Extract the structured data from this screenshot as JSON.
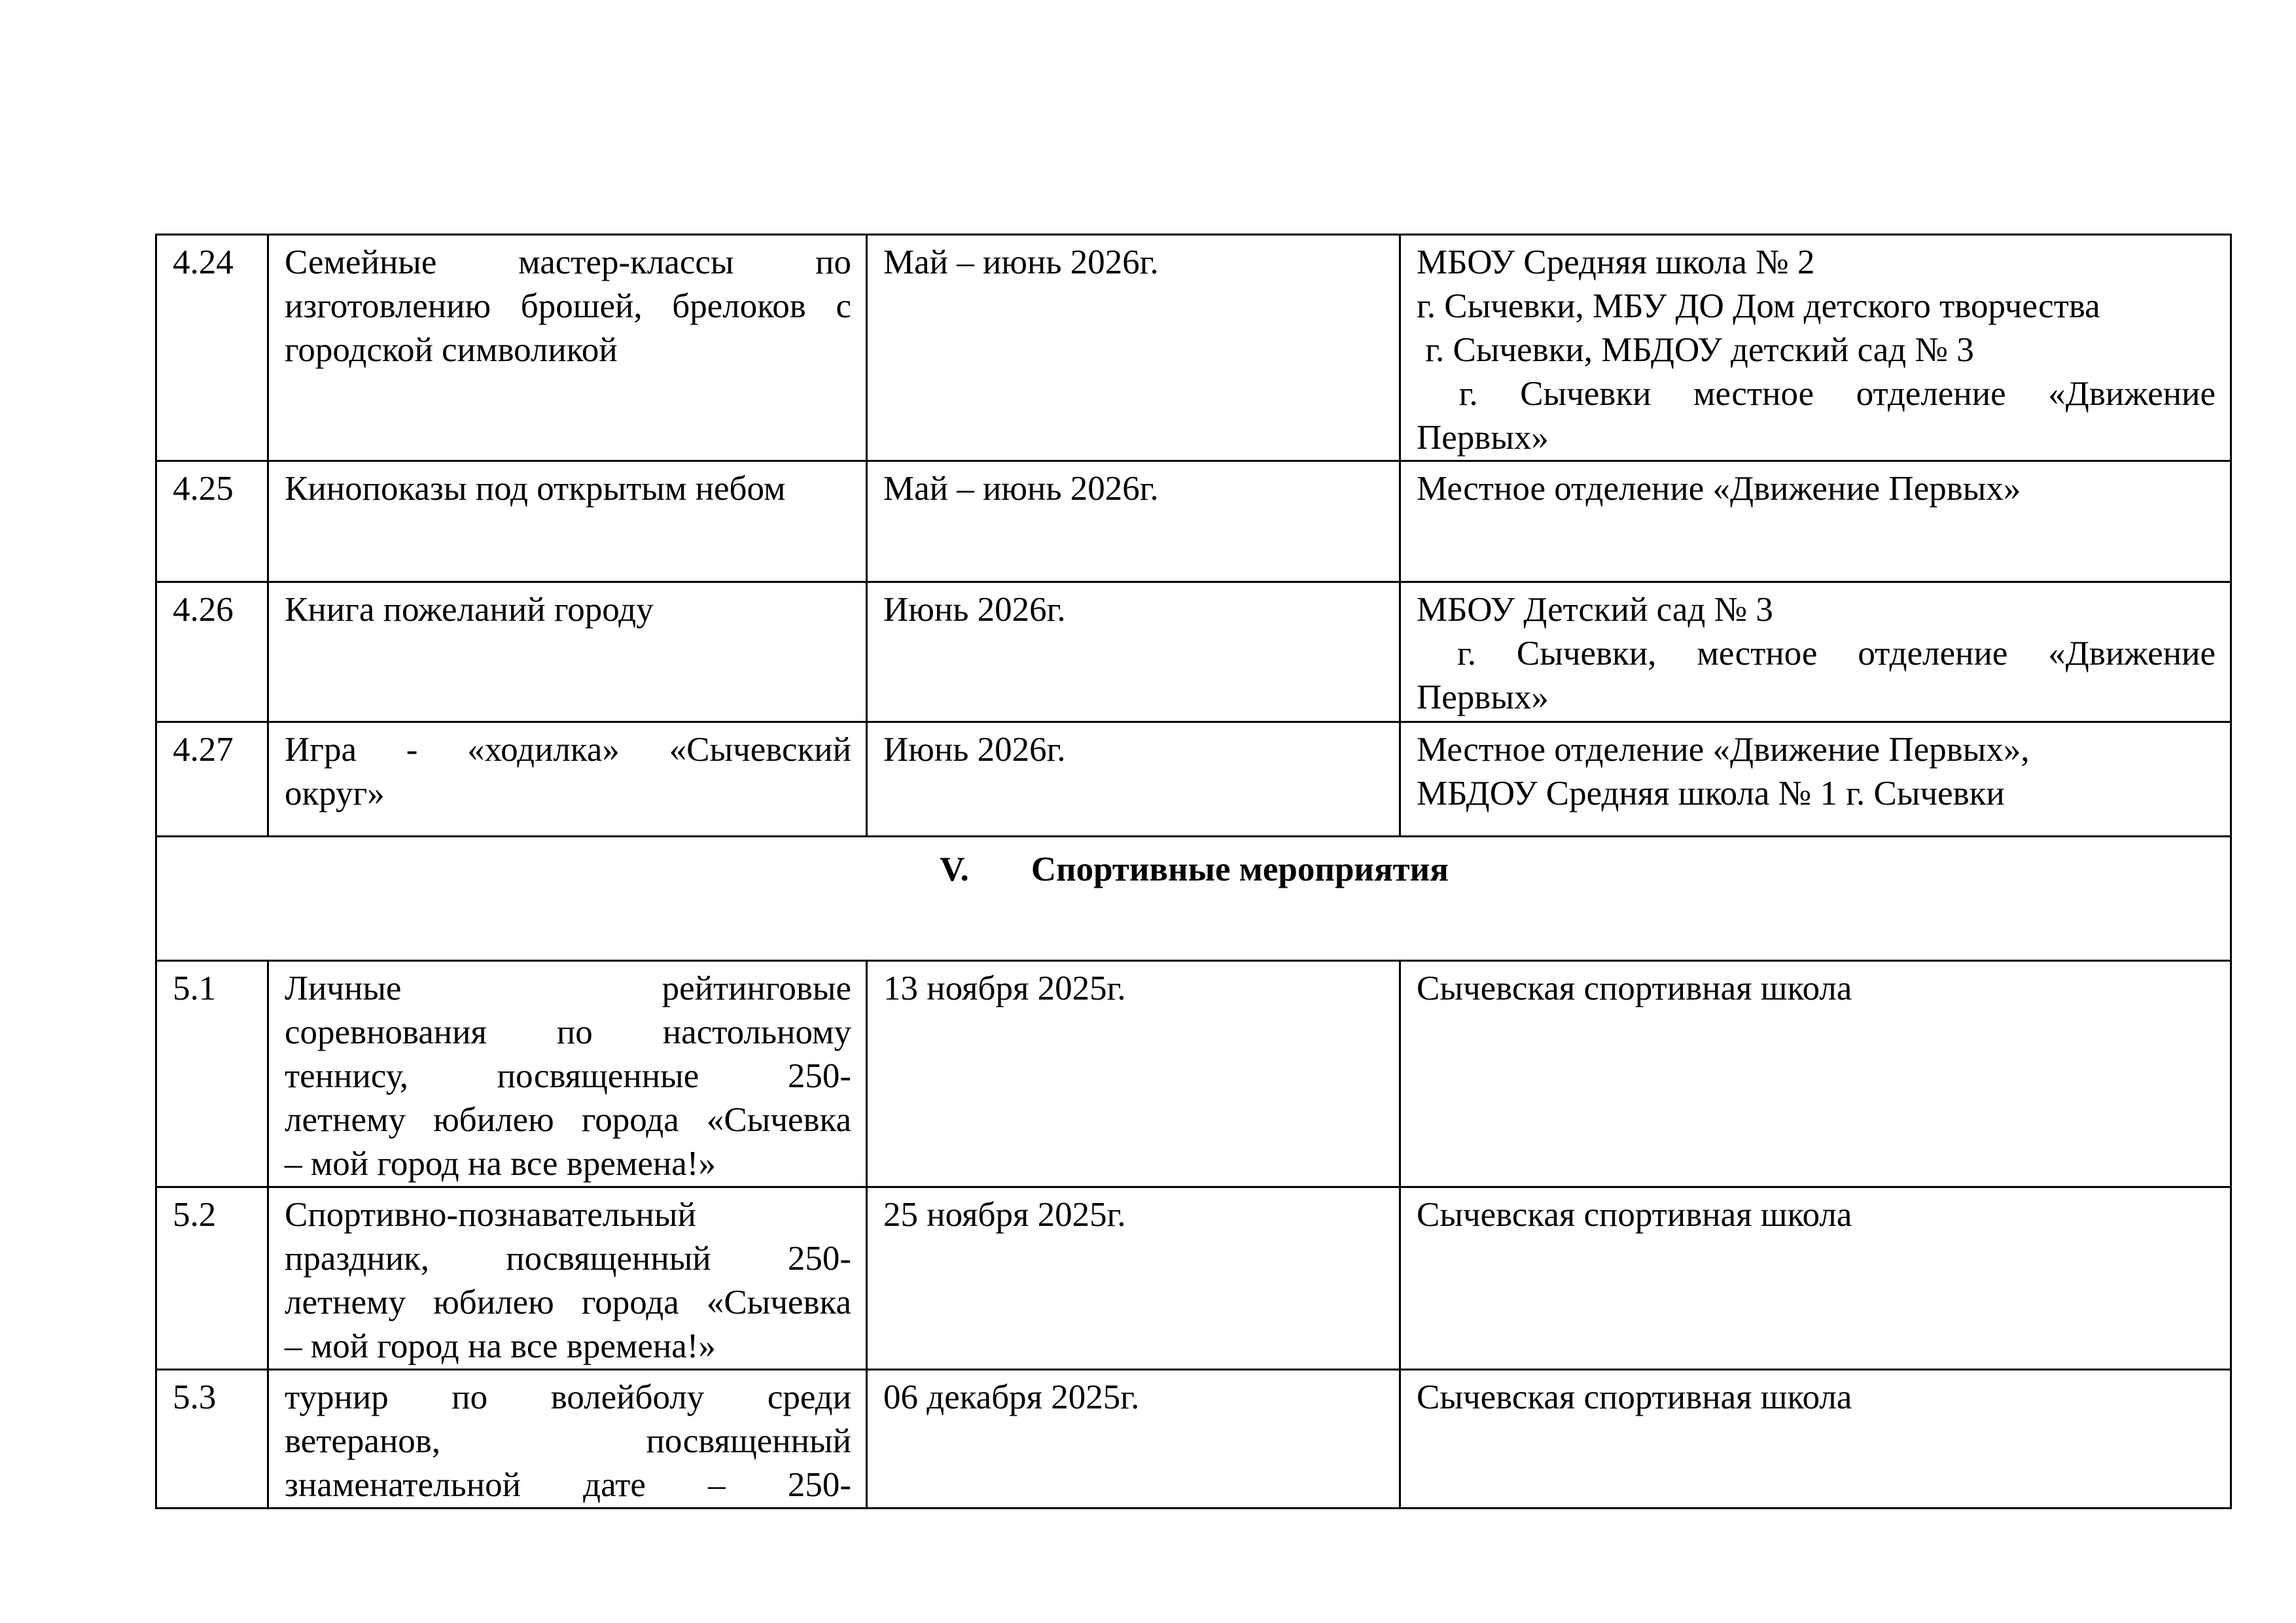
{
  "page": {
    "background_color": "#ffffff",
    "text_color": "#000000"
  },
  "table": {
    "rows": [
      {
        "kind": "item",
        "num": "4.24",
        "event": [
          {
            "t": "Семейные мастер-классы по",
            "j": true
          },
          {
            "t": "изготовлению брошей, брелоков с",
            "j": true
          },
          {
            "t": "городской символикой",
            "j": false
          }
        ],
        "date": [
          {
            "t": "Май – июнь 2026г.",
            "j": false
          }
        ],
        "org": [
          {
            "t": "МБОУ Средняя школа № 2",
            "j": false
          },
          {
            "t": "г. Сычевки, МБУ ДО Дом детского творчества",
            "j": false
          },
          {
            "t": " г. Сычевки, МБДОУ детский сад № 3",
            "j": false
          },
          {
            "t": " г. Сычевки местное отделение «Движение",
            "j": true
          },
          {
            "t": "Первых»",
            "j": false
          }
        ]
      },
      {
        "kind": "item",
        "num": "4.25",
        "event": [
          {
            "t": "Кинопоказы под открытым небом",
            "j": false
          }
        ],
        "date": [
          {
            "t": "Май – июнь 2026г.",
            "j": false
          }
        ],
        "org": [
          {
            "t": "Местное отделение «Движение Первых»",
            "j": false
          }
        ]
      },
      {
        "kind": "item",
        "num": "4.26",
        "event": [
          {
            "t": "Книга пожеланий городу",
            "j": false
          }
        ],
        "date": [
          {
            "t": "Июнь 2026г.",
            "j": false
          }
        ],
        "org": [
          {
            "t": "МБОУ Детский сад № 3",
            "j": false
          },
          {
            "t": " г. Сычевки, местное отделение «Движение",
            "j": true
          },
          {
            "t": "Первых»",
            "j": false
          }
        ]
      },
      {
        "kind": "item",
        "num": "4.27",
        "event": [
          {
            "t": "Игра - «ходилка» «Сычевский",
            "j": true
          },
          {
            "t": "округ»",
            "j": false
          }
        ],
        "date": [
          {
            "t": "Июнь 2026г.",
            "j": false
          }
        ],
        "org": [
          {
            "t": "Местное отделение «Движение Первых»,",
            "j": false
          },
          {
            "t": "МБДОУ Средняя школа № 1 г. Сычевки",
            "j": false
          }
        ]
      },
      {
        "kind": "section",
        "number": "V.",
        "title": "Спортивные мероприятия"
      },
      {
        "kind": "item",
        "num": "5.1",
        "event": [
          {
            "t": "Личные рейтинговые",
            "j": true
          },
          {
            "t": "соревнования по настольному",
            "j": true
          },
          {
            "t": "теннису, посвященные 250-",
            "j": true
          },
          {
            "t": "летнему юбилею города «Сычевка",
            "j": true
          },
          {
            "t": "– мой город на все времена!»",
            "j": false
          }
        ],
        "date": [
          {
            "t": "13 ноября 2025г.",
            "j": false
          }
        ],
        "org": [
          {
            "t": "Сычевская спортивная школа",
            "j": false
          }
        ]
      },
      {
        "kind": "item",
        "num": "5.2",
        "event": [
          {
            "t": "Спортивно-познавательный",
            "j": true
          },
          {
            "t": "праздник, посвященный 250-",
            "j": true
          },
          {
            "t": "летнему юбилею города «Сычевка",
            "j": true
          },
          {
            "t": "– мой город на все времена!»",
            "j": false
          }
        ],
        "date": [
          {
            "t": "25 ноября 2025г.",
            "j": false
          }
        ],
        "org": [
          {
            "t": "Сычевская спортивная школа",
            "j": false
          }
        ]
      },
      {
        "kind": "item",
        "num": "5.3",
        "event": [
          {
            "t": "турнир по волейболу среди",
            "j": true
          },
          {
            "t": "ветеранов, посвященный",
            "j": true
          },
          {
            "t": "знаменательной дате – 250-",
            "j": true
          }
        ],
        "date": [
          {
            "t": "06 декабря 2025г.",
            "j": false
          }
        ],
        "org": [
          {
            "t": "Сычевская спортивная школа",
            "j": false
          }
        ]
      }
    ]
  }
}
